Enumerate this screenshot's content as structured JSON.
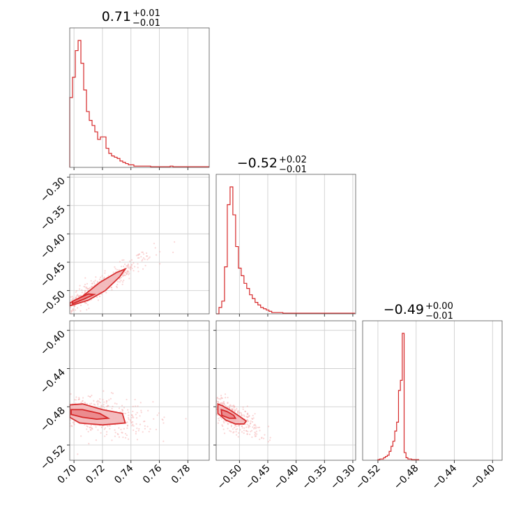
{
  "chart_data": {
    "type": "corner",
    "color": "#d62728",
    "parameters": [
      {
        "index": 0,
        "median": "0.71",
        "plus": "+0.01",
        "minus": "−0.01",
        "range": [
          0.697,
          0.795
        ],
        "ticks": [
          0.7,
          0.72,
          0.74,
          0.76,
          0.78
        ],
        "tick_labels": [
          "0.70",
          "0.72",
          "0.74",
          "0.76",
          "0.78"
        ]
      },
      {
        "index": 1,
        "median": "−0.52",
        "plus": "+0.02",
        "minus": "−0.01",
        "range": [
          -0.541,
          -0.295
        ],
        "ticks": [
          -0.5,
          -0.45,
          -0.4,
          -0.35,
          -0.3
        ],
        "tick_labels": [
          "−0.50",
          "−0.45",
          "−0.40",
          "−0.35",
          "−0.30"
        ],
        "y_ticks": [
          -0.3,
          -0.35,
          -0.4,
          -0.45,
          -0.5
        ],
        "y_tick_labels": [
          "−0.30",
          "−0.35",
          "−0.40",
          "−0.45",
          "−0.50"
        ]
      },
      {
        "index": 2,
        "median": "−0.49",
        "plus": "+0.00",
        "minus": "−0.01",
        "range": [
          -0.536,
          -0.39
        ],
        "ticks": [
          -0.52,
          -0.48,
          -0.44,
          -0.4
        ],
        "tick_labels": [
          "−0.52",
          "−0.48",
          "−0.44",
          "−0.40"
        ],
        "y_ticks": [
          -0.4,
          -0.44,
          -0.48,
          -0.52
        ],
        "y_tick_labels": [
          "−0.40",
          "−0.44",
          "−0.48",
          "−0.52"
        ]
      }
    ],
    "histograms": [
      {
        "param": 0,
        "bin_edges_start": 0.697,
        "bin_width": 0.00196,
        "counts": [
          0.55,
          0.71,
          0.92,
          1.0,
          0.82,
          0.61,
          0.44,
          0.37,
          0.33,
          0.28,
          0.22,
          0.24,
          0.24,
          0.15,
          0.11,
          0.09,
          0.08,
          0.07,
          0.05,
          0.04,
          0.03,
          0.02,
          0.02,
          0.01,
          0.01,
          0.01,
          0.01,
          0.01,
          0.01,
          0.005,
          0.005,
          0.005,
          0.005,
          0.005,
          0.005,
          0.005,
          0.01,
          0.005,
          0.005,
          0.005,
          0.005,
          0.005,
          0.005,
          0.005,
          0.005,
          0.005,
          0.005,
          0.005,
          0.005,
          0.005
        ]
      },
      {
        "param": 1,
        "bin_edges_start": -0.541,
        "bin_width": 0.0049,
        "counts": [
          0.0,
          0.05,
          0.1,
          0.37,
          0.86,
          1.0,
          0.78,
          0.53,
          0.36,
          0.3,
          0.24,
          0.2,
          0.15,
          0.12,
          0.09,
          0.07,
          0.05,
          0.04,
          0.03,
          0.02,
          0.01,
          0.01,
          0.01,
          0.01,
          0.005,
          0.005,
          0.005,
          0.005,
          0.005,
          0.005,
          0.005,
          0.005,
          0.005,
          0.005,
          0.005,
          0.005,
          0.005,
          0.005,
          0.005,
          0.005,
          0.005,
          0.005,
          0.005,
          0.005,
          0.005,
          0.005,
          0.005,
          0.005,
          0.005,
          0.005
        ]
      },
      {
        "param": 2,
        "bin_edges_start": -0.52,
        "bin_width": 0.00196,
        "counts": [
          0.005,
          0.01,
          0.01,
          0.02,
          0.03,
          0.04,
          0.07,
          0.11,
          0.15,
          0.23,
          0.3,
          0.55,
          0.63,
          1.0,
          0.06,
          0.02,
          0.01,
          0.01,
          0.005,
          0.005,
          0.005,
          0.005
        ]
      }
    ],
    "scatter_2d": [
      {
        "x_param": 0,
        "y_param": 1,
        "relation": "positive, linear",
        "contour_outer": [
          [
            0.697,
            -0.527
          ],
          [
            0.71,
            -0.517
          ],
          [
            0.722,
            -0.5
          ],
          [
            0.732,
            -0.476
          ],
          [
            0.736,
            -0.462
          ],
          [
            0.73,
            -0.468
          ],
          [
            0.718,
            -0.486
          ],
          [
            0.706,
            -0.51
          ],
          [
            0.697,
            -0.522
          ]
        ],
        "contour_inner": [
          [
            0.699,
            -0.523
          ],
          [
            0.707,
            -0.515
          ],
          [
            0.714,
            -0.507
          ],
          [
            0.71,
            -0.506
          ],
          [
            0.703,
            -0.514
          ],
          [
            0.699,
            -0.519
          ]
        ]
      },
      {
        "x_param": 0,
        "y_param": 2,
        "relation": "weak negative",
        "contour_outer": [
          [
            0.697,
            -0.491
          ],
          [
            0.704,
            -0.497
          ],
          [
            0.72,
            -0.499
          ],
          [
            0.736,
            -0.497
          ],
          [
            0.734,
            -0.487
          ],
          [
            0.72,
            -0.483
          ],
          [
            0.706,
            -0.477
          ],
          [
            0.697,
            -0.478
          ]
        ],
        "contour_inner": [
          [
            0.698,
            -0.488
          ],
          [
            0.706,
            -0.491
          ],
          [
            0.716,
            -0.493
          ],
          [
            0.724,
            -0.492
          ],
          [
            0.718,
            -0.487
          ],
          [
            0.706,
            -0.483
          ],
          [
            0.698,
            -0.483
          ]
        ]
      },
      {
        "x_param": 1,
        "y_param": 2,
        "relation": "negative",
        "contour_outer": [
          [
            -0.538,
            -0.477
          ],
          [
            -0.53,
            -0.479
          ],
          [
            -0.515,
            -0.484
          ],
          [
            -0.5,
            -0.49
          ],
          [
            -0.488,
            -0.495
          ],
          [
            -0.492,
            -0.498
          ],
          [
            -0.507,
            -0.498
          ],
          [
            -0.524,
            -0.494
          ],
          [
            -0.538,
            -0.487
          ]
        ],
        "contour_inner": [
          [
            -0.532,
            -0.483
          ],
          [
            -0.522,
            -0.485
          ],
          [
            -0.51,
            -0.489
          ],
          [
            -0.507,
            -0.492
          ],
          [
            -0.518,
            -0.492
          ],
          [
            -0.531,
            -0.489
          ]
        ]
      }
    ]
  }
}
